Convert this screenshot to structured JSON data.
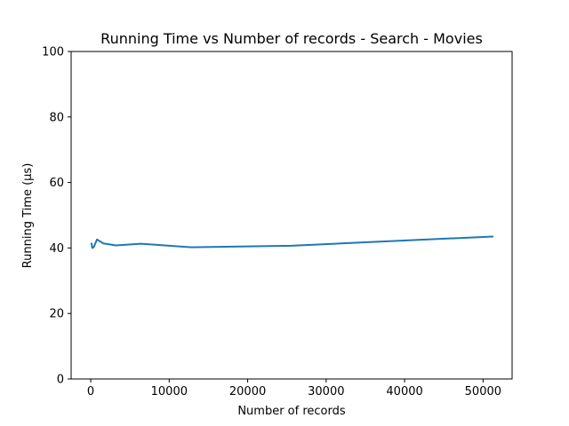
{
  "chart_data": {
    "type": "line",
    "title": "Running Time vs Number of records - Search - Movies",
    "xlabel": "Number of records",
    "ylabel": "Running Time (μs)",
    "xlim": [
      -2500,
      53700
    ],
    "ylim": [
      0,
      100
    ],
    "xticks": [
      0,
      10000,
      20000,
      30000,
      40000,
      50000
    ],
    "yticks": [
      0,
      20,
      40,
      60,
      80,
      100
    ],
    "grid": false,
    "series": [
      {
        "color": "#1f77b4",
        "x": [
          100,
          200,
          400,
          800,
          1600,
          3200,
          6400,
          12800,
          25600,
          51200
        ],
        "y": [
          41.3,
          40.0,
          40.3,
          42.6,
          41.4,
          40.8,
          41.3,
          40.2,
          40.7,
          43.5
        ]
      }
    ]
  }
}
